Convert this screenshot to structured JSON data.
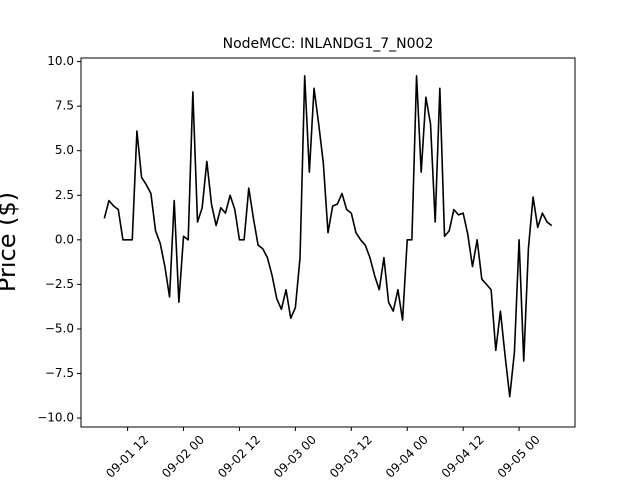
{
  "chart_data": {
    "type": "line",
    "title": "NodeMCC: INLANDG1_7_N002",
    "y_label": "Price ($)",
    "x": [
      "09-01 07",
      "09-01 08",
      "09-01 09",
      "09-01 10",
      "09-01 11",
      "09-01 12",
      "09-01 13",
      "09-01 14",
      "09-01 15",
      "09-01 16",
      "09-01 17",
      "09-01 18",
      "09-01 19",
      "09-01 20",
      "09-01 21",
      "09-01 22",
      "09-01 23",
      "09-02 00",
      "09-02 01",
      "09-02 02",
      "09-02 03",
      "09-02 04",
      "09-02 05",
      "09-02 06",
      "09-02 07",
      "09-02 08",
      "09-02 09",
      "09-02 10",
      "09-02 11",
      "09-02 12",
      "09-02 13",
      "09-02 14",
      "09-02 15",
      "09-02 16",
      "09-02 17",
      "09-02 18",
      "09-02 19",
      "09-02 20",
      "09-02 21",
      "09-02 22",
      "09-02 23",
      "09-03 00",
      "09-03 01",
      "09-03 02",
      "09-03 03",
      "09-03 04",
      "09-03 05",
      "09-03 06",
      "09-03 07",
      "09-03 08",
      "09-03 09",
      "09-03 10",
      "09-03 11",
      "09-03 12",
      "09-03 13",
      "09-03 14",
      "09-03 15",
      "09-03 16",
      "09-03 17",
      "09-03 18",
      "09-03 19",
      "09-03 20",
      "09-03 21",
      "09-03 22",
      "09-03 23",
      "09-04 00",
      "09-04 01",
      "09-04 02",
      "09-04 03",
      "09-04 04",
      "09-04 05",
      "09-04 06",
      "09-04 07",
      "09-04 08",
      "09-04 09",
      "09-04 10",
      "09-04 11",
      "09-04 12",
      "09-04 13",
      "09-04 14",
      "09-04 15",
      "09-04 16",
      "09-04 17",
      "09-04 18",
      "09-04 19",
      "09-04 20",
      "09-04 21",
      "09-04 22",
      "09-04 23",
      "09-05 00",
      "09-05 01",
      "09-05 02",
      "09-05 03",
      "09-05 04",
      "09-05 05",
      "09-05 06",
      "09-05 07"
    ],
    "values": [
      1.2,
      2.2,
      1.9,
      1.7,
      0.0,
      0.0,
      0.0,
      6.1,
      3.5,
      3.1,
      2.6,
      0.5,
      -0.2,
      -1.5,
      -3.2,
      2.2,
      -3.5,
      0.2,
      0.0,
      8.3,
      1.0,
      1.8,
      4.4,
      2.0,
      0.8,
      1.8,
      1.5,
      2.5,
      1.7,
      0.0,
      0.0,
      2.9,
      1.2,
      -0.3,
      -0.5,
      -1.0,
      -2.0,
      -3.3,
      -3.9,
      -2.8,
      -4.4,
      -3.8,
      -1.0,
      9.2,
      3.8,
      8.5,
      6.5,
      4.3,
      0.4,
      1.9,
      2.0,
      2.6,
      1.7,
      1.5,
      0.4,
      0.0,
      -0.3,
      -1.0,
      -2.0,
      -2.8,
      -1.0,
      -3.5,
      -4.0,
      -2.8,
      -4.5,
      0.0,
      0.0,
      9.2,
      3.8,
      8.0,
      6.5,
      1.0,
      8.5,
      0.2,
      0.5,
      1.7,
      1.4,
      1.5,
      0.3,
      -1.5,
      0.0,
      -2.2,
      -2.5,
      -2.8,
      -6.2,
      -4.0,
      -6.5,
      -8.8,
      -6.3,
      0.0,
      -6.8,
      -0.5,
      2.4,
      0.7,
      1.5,
      1.0,
      0.8
    ],
    "color": "#000000",
    "xlim": [
      "09-01 02",
      "09-05 12"
    ],
    "xticks": [
      "09-01 12",
      "09-02 00",
      "09-02 12",
      "09-03 00",
      "09-03 12",
      "09-04 00",
      "09-04 12",
      "09-05 00"
    ],
    "ylim": [
      -10.5,
      10.2
    ],
    "yticks": [
      {
        "value": -10,
        "label": "−10.0"
      },
      {
        "value": -7.5,
        "label": "−7.5"
      },
      {
        "value": -5,
        "label": "−5.0"
      },
      {
        "value": -2.5,
        "label": "−2.5"
      },
      {
        "value": 0,
        "label": "0.0"
      },
      {
        "value": 2.5,
        "label": "2.5"
      },
      {
        "value": 5,
        "label": "5.0"
      },
      {
        "value": 7.5,
        "label": "7.5"
      },
      {
        "value": 10,
        "label": "10.0"
      }
    ]
  }
}
